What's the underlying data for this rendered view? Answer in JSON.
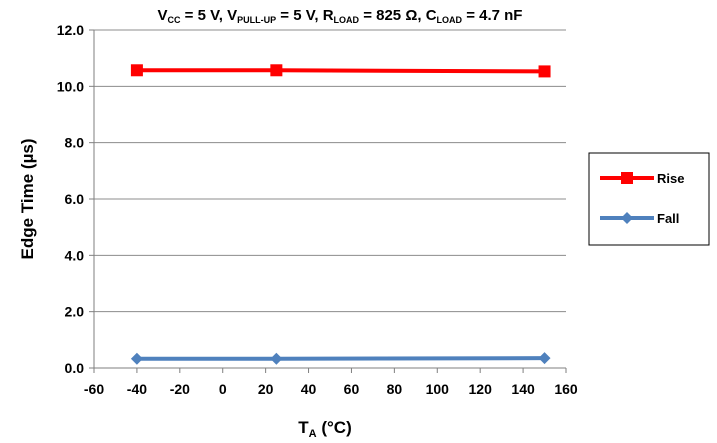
{
  "chart_data": {
    "type": "line",
    "title": {
      "parts": [
        {
          "t": "V",
          "s": "n"
        },
        {
          "t": "CC",
          "s": "sub"
        },
        {
          "t": " = 5 V, ",
          "s": "n"
        },
        {
          "t": "V",
          "s": "n"
        },
        {
          "t": "PULL-UP",
          "s": "sub"
        },
        {
          "t": " = 5 V, ",
          "s": "n"
        },
        {
          "t": "R",
          "s": "n"
        },
        {
          "t": "LOAD",
          "s": "sub"
        },
        {
          "t": " = 825 Ω, ",
          "s": "n"
        },
        {
          "t": "C",
          "s": "n"
        },
        {
          "t": "LOAD",
          "s": "sub"
        },
        {
          "t": " = 4.7 nF",
          "s": "n"
        }
      ]
    },
    "xlabel": {
      "main": "T",
      "sub": "A",
      "rest": " (°C)"
    },
    "ylabel": "Edge Time (µs)",
    "xlim": [
      -60,
      160
    ],
    "ylim": [
      0,
      12
    ],
    "xticks": [
      -60,
      -40,
      -20,
      0,
      20,
      40,
      60,
      80,
      100,
      120,
      140,
      160
    ],
    "yticks": [
      0,
      2,
      4,
      6,
      8,
      10,
      12
    ],
    "ytick_labels": [
      "0.0",
      "2.0",
      "4.0",
      "6.0",
      "8.0",
      "10.0",
      "12.0"
    ],
    "grid": "horizontal",
    "legend_position": "right",
    "series": [
      {
        "name": "Rise",
        "color": "#ff0000",
        "marker": "square",
        "x": [
          -40,
          25,
          150
        ],
        "y": [
          10.57,
          10.57,
          10.53
        ]
      },
      {
        "name": "Fall",
        "color": "#4f81bd",
        "marker": "diamond",
        "x": [
          -40,
          25,
          150
        ],
        "y": [
          0.33,
          0.33,
          0.35
        ]
      }
    ]
  }
}
